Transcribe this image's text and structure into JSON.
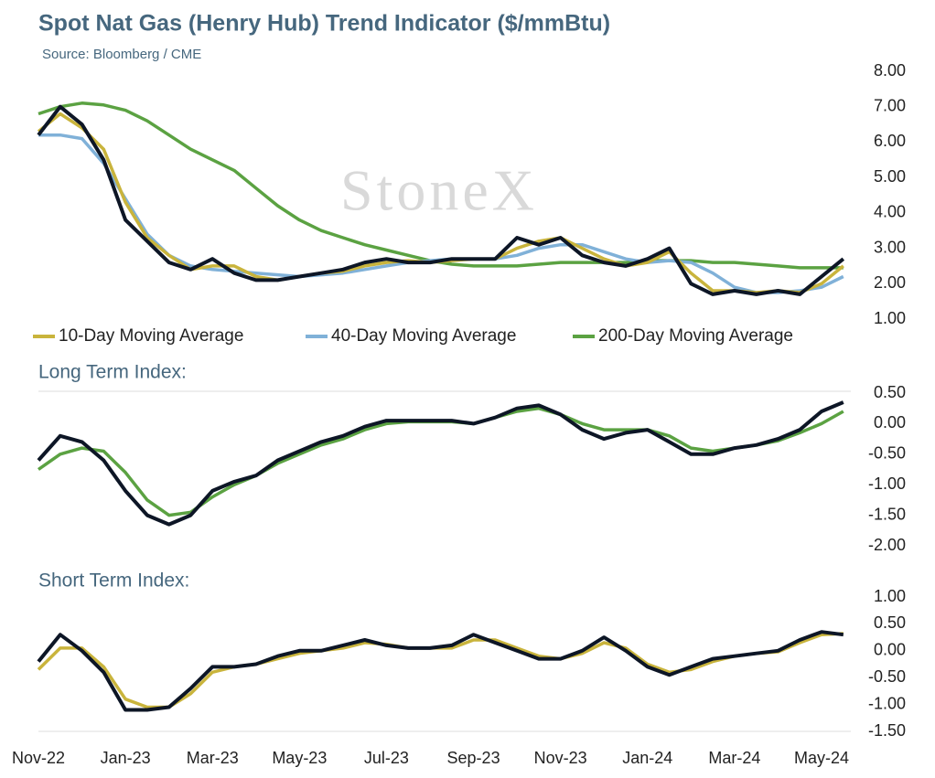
{
  "chart_data": [
    {
      "type": "line",
      "title": "Spot Nat Gas (Henry Hub) Trend Indicator ($/mmBtu)",
      "subtitle": "Source: Bloomberg / CME",
      "watermark": "StoneX",
      "ylim": [
        1,
        8
      ],
      "yticks": [
        {
          "value": 8,
          "label": "8.00"
        },
        {
          "value": 7,
          "label": "7.00"
        },
        {
          "value": 6,
          "label": "6.00"
        },
        {
          "value": 5,
          "label": "5.00"
        },
        {
          "value": 4,
          "label": "4.00"
        },
        {
          "value": 3,
          "label": "3.00"
        },
        {
          "value": 2,
          "label": "2.00"
        },
        {
          "value": 1,
          "label": "1.00"
        }
      ],
      "legend": "bottom",
      "series": [
        {
          "color": "#0d1626",
          "values": [
            6.2,
            7.0,
            6.5,
            5.5,
            3.8,
            3.2,
            2.6,
            2.4,
            2.7,
            2.3,
            2.1,
            2.1,
            2.2,
            2.3,
            2.4,
            2.6,
            2.7,
            2.6,
            2.6,
            2.7,
            2.7,
            2.7,
            3.3,
            3.1,
            3.3,
            2.8,
            2.6,
            2.5,
            2.7,
            3.0,
            2.0,
            1.7,
            1.8,
            1.7,
            1.8,
            1.7,
            2.2,
            2.7
          ]
        },
        {
          "name": "10-Day Moving Average",
          "color": "#c9b43c",
          "values": [
            6.3,
            6.8,
            6.4,
            5.8,
            4.3,
            3.3,
            2.8,
            2.4,
            2.5,
            2.5,
            2.2,
            2.1,
            2.2,
            2.3,
            2.35,
            2.5,
            2.6,
            2.65,
            2.6,
            2.65,
            2.7,
            2.7,
            3.0,
            3.2,
            3.3,
            3.0,
            2.7,
            2.5,
            2.6,
            2.9,
            2.3,
            1.8,
            1.8,
            1.75,
            1.8,
            1.75,
            2.0,
            2.5
          ]
        },
        {
          "name": "40-Day Moving Average",
          "color": "#80b1d8",
          "values": [
            6.2,
            6.2,
            6.1,
            5.4,
            4.4,
            3.4,
            2.8,
            2.5,
            2.4,
            2.35,
            2.3,
            2.25,
            2.2,
            2.25,
            2.3,
            2.4,
            2.5,
            2.6,
            2.65,
            2.7,
            2.7,
            2.7,
            2.8,
            3.0,
            3.1,
            3.1,
            2.9,
            2.7,
            2.6,
            2.65,
            2.6,
            2.3,
            1.9,
            1.75,
            1.75,
            1.8,
            1.9,
            2.2
          ]
        },
        {
          "name": "200-Day Moving Average",
          "color": "#5ba242",
          "values": [
            6.8,
            7.0,
            7.1,
            7.05,
            6.9,
            6.6,
            6.2,
            5.8,
            5.5,
            5.2,
            4.7,
            4.2,
            3.8,
            3.5,
            3.3,
            3.1,
            2.95,
            2.8,
            2.65,
            2.55,
            2.5,
            2.5,
            2.5,
            2.55,
            2.6,
            2.6,
            2.6,
            2.6,
            2.65,
            2.65,
            2.65,
            2.6,
            2.6,
            2.55,
            2.5,
            2.45,
            2.45,
            2.45
          ]
        }
      ]
    },
    {
      "type": "line",
      "title": "Long Term Index:",
      "ylim": [
        -2,
        0.5
      ],
      "yticks": [
        {
          "value": 0.5,
          "label": "0.50"
        },
        {
          "value": 0,
          "label": "0.00"
        },
        {
          "value": -0.5,
          "label": "-0.50"
        },
        {
          "value": -1,
          "label": "-1.00"
        },
        {
          "value": -1.5,
          "label": "-1.50"
        },
        {
          "value": -2,
          "label": "-2.00"
        }
      ],
      "series": [
        {
          "color": "#0d1626",
          "values": [
            -0.6,
            -0.2,
            -0.3,
            -0.6,
            -1.1,
            -1.5,
            -1.65,
            -1.5,
            -1.1,
            -0.95,
            -0.85,
            -0.6,
            -0.45,
            -0.3,
            -0.2,
            -0.05,
            0.05,
            0.05,
            0.05,
            0.05,
            0.0,
            0.1,
            0.25,
            0.3,
            0.15,
            -0.1,
            -0.25,
            -0.15,
            -0.1,
            -0.3,
            -0.5,
            -0.5,
            -0.4,
            -0.35,
            -0.25,
            -0.1,
            0.2,
            0.35
          ]
        },
        {
          "color": "#5ba242",
          "values": [
            -0.75,
            -0.5,
            -0.4,
            -0.45,
            -0.8,
            -1.25,
            -1.5,
            -1.45,
            -1.2,
            -1.0,
            -0.85,
            -0.65,
            -0.5,
            -0.35,
            -0.25,
            -0.1,
            0.0,
            0.03,
            0.03,
            0.03,
            0.0,
            0.1,
            0.2,
            0.25,
            0.15,
            0.0,
            -0.1,
            -0.1,
            -0.1,
            -0.2,
            -0.4,
            -0.45,
            -0.4,
            -0.35,
            -0.28,
            -0.15,
            0.0,
            0.2
          ]
        }
      ]
    },
    {
      "type": "line",
      "title": "Short Term Index:",
      "ylim": [
        -1.5,
        1
      ],
      "yticks": [
        {
          "value": 1,
          "label": "1.00"
        },
        {
          "value": 0.5,
          "label": "0.50"
        },
        {
          "value": 0,
          "label": "0.00"
        },
        {
          "value": -0.5,
          "label": "-0.50"
        },
        {
          "value": -1,
          "label": "-1.00"
        },
        {
          "value": -1.5,
          "label": "-1.50"
        }
      ],
      "x": [
        "Nov-22",
        null,
        null,
        null,
        "Jan-23",
        null,
        null,
        null,
        "Mar-23",
        null,
        null,
        null,
        "May-23",
        null,
        null,
        null,
        "Jul-23",
        null,
        null,
        null,
        "Sep-23",
        null,
        null,
        null,
        "Nov-23",
        null,
        null,
        null,
        "Jan-24",
        null,
        null,
        null,
        "Mar-24",
        null,
        null,
        null,
        "May-24",
        null
      ],
      "series": [
        {
          "color": "#0d1626",
          "values": [
            -0.2,
            0.3,
            0.0,
            -0.4,
            -1.1,
            -1.1,
            -1.05,
            -0.7,
            -0.3,
            -0.3,
            -0.25,
            -0.1,
            0.0,
            0.0,
            0.1,
            0.2,
            0.1,
            0.05,
            0.05,
            0.1,
            0.3,
            0.15,
            0.0,
            -0.15,
            -0.15,
            0.0,
            0.25,
            0.0,
            -0.3,
            -0.45,
            -0.3,
            -0.15,
            -0.1,
            -0.05,
            0.0,
            0.2,
            0.35,
            0.3
          ]
        },
        {
          "color": "#c9b43c",
          "values": [
            -0.35,
            0.05,
            0.05,
            -0.3,
            -0.9,
            -1.05,
            -1.05,
            -0.8,
            -0.4,
            -0.3,
            -0.25,
            -0.15,
            -0.05,
            0.0,
            0.05,
            0.15,
            0.12,
            0.05,
            0.05,
            0.05,
            0.2,
            0.2,
            0.05,
            -0.1,
            -0.15,
            -0.05,
            0.15,
            0.05,
            -0.25,
            -0.4,
            -0.35,
            -0.2,
            -0.1,
            -0.05,
            -0.02,
            0.15,
            0.3,
            0.32
          ]
        }
      ]
    }
  ]
}
